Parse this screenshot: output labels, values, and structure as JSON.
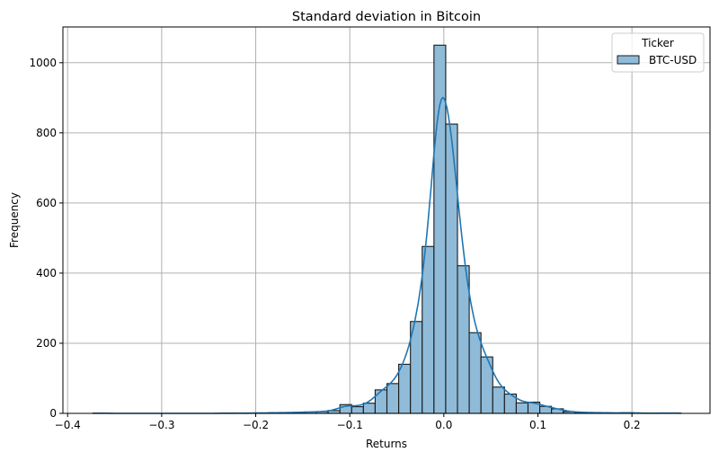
{
  "chart_data": {
    "type": "bar",
    "subtype": "histogram-with-kde",
    "title": "Standard deviation in Bitcoin",
    "xlabel": "Returns",
    "ylabel": "Frequency",
    "xlim": [
      -0.405,
      0.283
    ],
    "ylim": [
      0,
      1102
    ],
    "xticks": [
      -0.4,
      -0.3,
      -0.2,
      -0.1,
      0.0,
      0.1,
      0.2
    ],
    "xtick_labels": [
      "−0.4",
      "−0.3",
      "−0.2",
      "−0.1",
      "0.0",
      "0.1",
      "0.2"
    ],
    "yticks": [
      0,
      200,
      400,
      600,
      800,
      1000
    ],
    "ytick_labels": [
      "0",
      "200",
      "400",
      "600",
      "800",
      "1000"
    ],
    "grid": true,
    "bin_start": -0.373,
    "bin_width": 0.0125,
    "counts": [
      1,
      0,
      0,
      0,
      0,
      0,
      0,
      0,
      0,
      0,
      0,
      1,
      0,
      1,
      1,
      2,
      2,
      3,
      4,
      5,
      8,
      25,
      19,
      29,
      67,
      85,
      140,
      262,
      476,
      1050,
      825,
      421,
      230,
      161,
      75,
      55,
      30,
      32,
      20,
      13,
      5,
      3,
      2,
      2,
      1,
      2,
      1,
      0,
      1,
      1
    ],
    "kde": true,
    "legend": {
      "title": "Ticker",
      "entries": [
        "BTC-USD"
      ],
      "placement": "top-right"
    },
    "colors": {
      "bar_fill": "#8fbbd9",
      "bar_edge": "#1a1a1a",
      "kde_line": "#1f77b4",
      "grid": "#b0b0b0"
    }
  }
}
